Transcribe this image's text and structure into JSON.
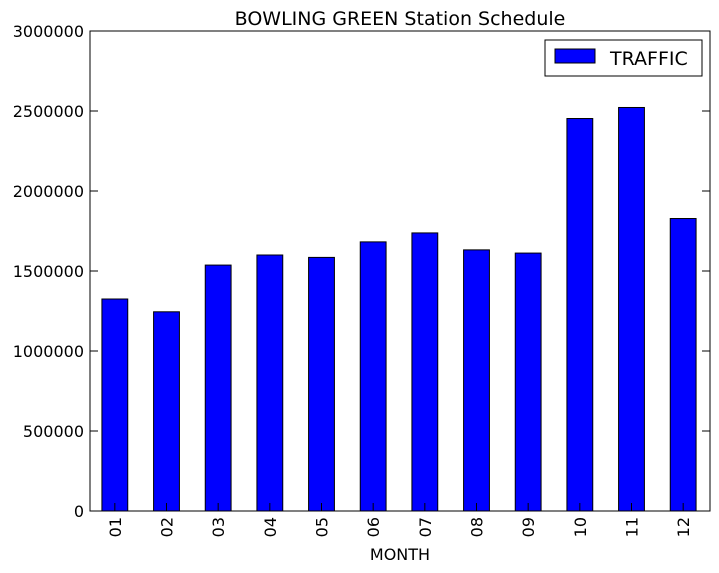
{
  "chart_data": {
    "type": "bar",
    "title": "BOWLING GREEN Station Schedule",
    "xlabel": "MONTH",
    "ylabel": "",
    "categories": [
      "01",
      "02",
      "03",
      "04",
      "05",
      "06",
      "07",
      "08",
      "09",
      "10",
      "11",
      "12"
    ],
    "series": [
      {
        "name": "TRAFFIC",
        "values": [
          1325000,
          1245000,
          1537000,
          1600000,
          1585000,
          1682000,
          1738000,
          1632000,
          1612000,
          2453000,
          2522000,
          1828000
        ],
        "color": "#0000ff"
      }
    ],
    "ylim": [
      0,
      3000000
    ],
    "yticks": [
      "0",
      "500000",
      "1000000",
      "1500000",
      "2000000",
      "2500000",
      "3000000"
    ],
    "ytick_values": [
      0,
      500000,
      1000000,
      1500000,
      2000000,
      2500000,
      3000000
    ],
    "grid": false,
    "legend_position": "top-right"
  }
}
